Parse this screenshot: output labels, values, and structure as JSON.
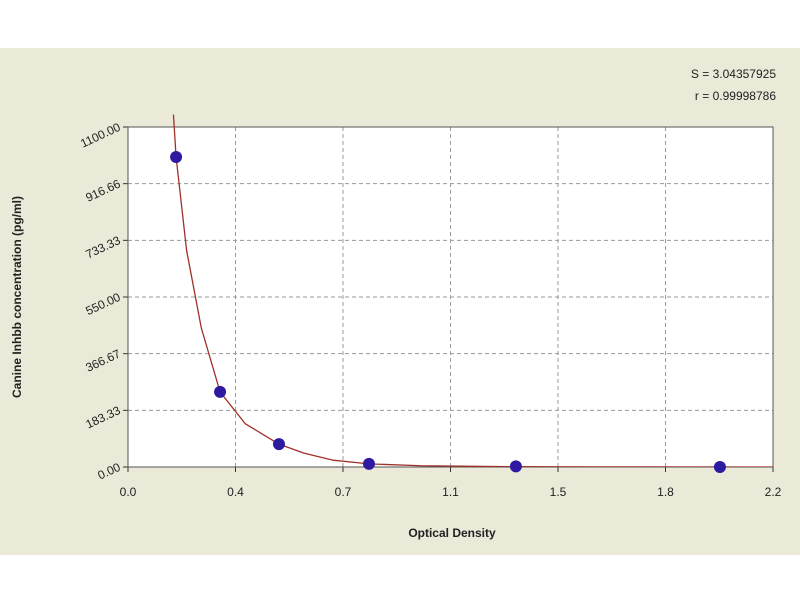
{
  "chart_data": {
    "type": "scatter",
    "annotations": [
      "S = 3.04357925",
      "r = 0.99998786"
    ],
    "x_label": "Optical Density",
    "y_label": "Canine Inhbb concentration (pg/ml)",
    "xlim": [
      0,
      2.2
    ],
    "ylim": [
      0,
      1100
    ],
    "xticks": [
      {
        "value": 0,
        "label": "0.0"
      },
      {
        "value": 0.3667,
        "label": "0.4"
      },
      {
        "value": 0.7333,
        "label": "0.7"
      },
      {
        "value": 1.1,
        "label": "1.1"
      },
      {
        "value": 1.4667,
        "label": "1.5"
      },
      {
        "value": 1.8333,
        "label": "1.8"
      },
      {
        "value": 2.2,
        "label": "2.2"
      }
    ],
    "yticks": [
      {
        "value": 0,
        "label": "0.00"
      },
      {
        "value": 183.33,
        "label": "183.33"
      },
      {
        "value": 366.67,
        "label": "366.67"
      },
      {
        "value": 550,
        "label": "550.00"
      },
      {
        "value": 733.33,
        "label": "733.33"
      },
      {
        "value": 916.66,
        "label": "916.66"
      },
      {
        "value": 1100,
        "label": "1100.00"
      }
    ],
    "grid": true,
    "series": [
      {
        "color": "#2d1aa0",
        "x": [
          0.164,
          0.314,
          0.515,
          0.822,
          1.323,
          2.019
        ],
        "values": [
          1003,
          243,
          74,
          10,
          2,
          0
        ]
      }
    ],
    "curve": {
      "color": "#a0302a",
      "x": [
        0.155,
        0.164,
        0.2,
        0.25,
        0.314,
        0.4,
        0.515,
        0.6,
        0.7,
        0.822,
        1.0,
        1.3,
        1.6,
        2.2
      ],
      "values": [
        1140,
        1003,
        700,
        450,
        243,
        140,
        74,
        45,
        22,
        10,
        4,
        1,
        0.5,
        0
      ]
    }
  }
}
